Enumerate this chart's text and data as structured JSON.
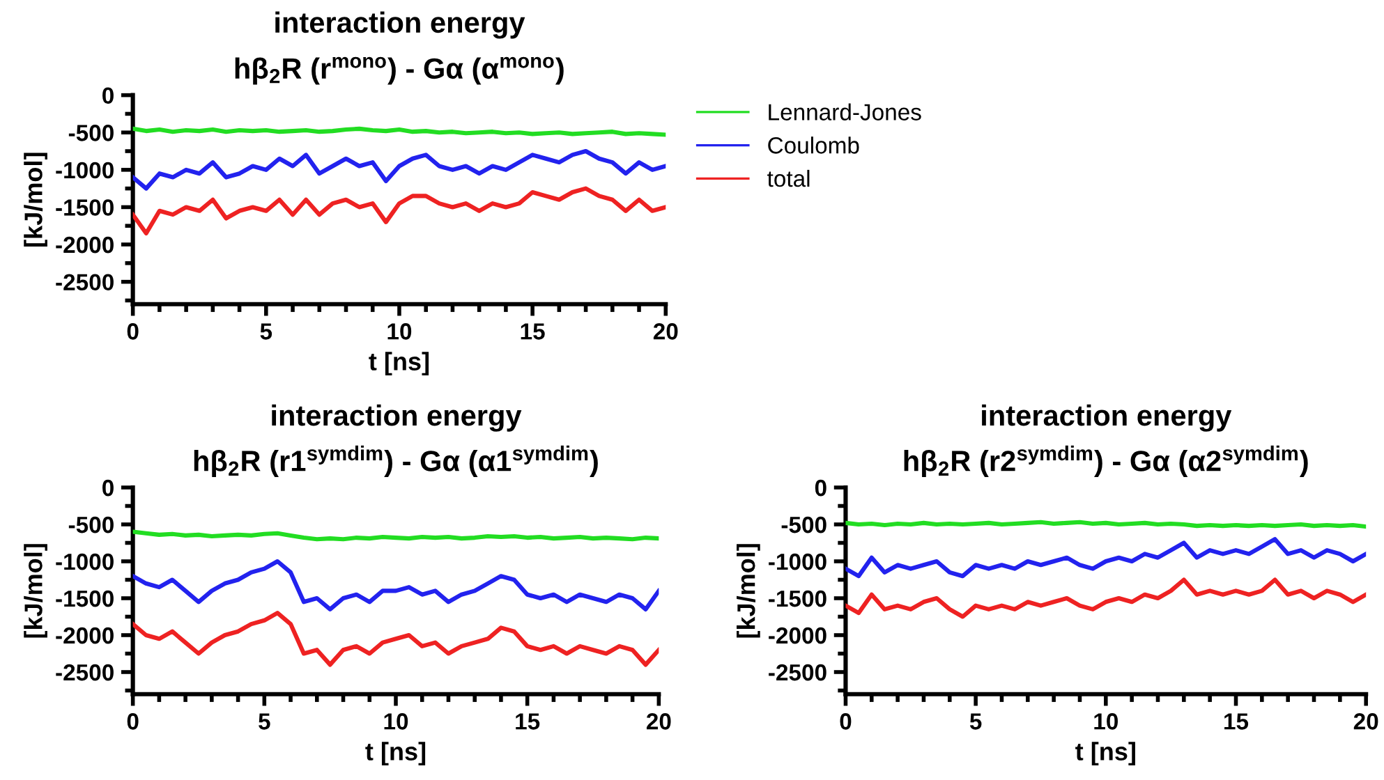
{
  "chart_data": [
    {
      "type": "line",
      "title": "interaction energy",
      "subtitle": "hβ$_{2}$R (r$^{mono}$) - Gα (α$^{mono}$)",
      "xlabel": "t [ns]",
      "ylabel": "[kJ/mol]",
      "x": [
        0,
        0.5,
        1,
        1.5,
        2,
        2.5,
        3,
        3.5,
        4,
        4.5,
        5,
        5.5,
        6,
        6.5,
        7,
        7.5,
        8,
        8.5,
        9,
        9.5,
        10,
        10.5,
        11,
        11.5,
        12,
        12.5,
        13,
        13.5,
        14,
        14.5,
        15,
        15.5,
        16,
        16.5,
        17,
        17.5,
        18,
        18.5,
        19,
        19.5,
        20
      ],
      "xlim": [
        0,
        20
      ],
      "ylim": [
        -2800,
        0
      ],
      "xticks": [
        0,
        {
          "value": 1,
          "label": null
        },
        {
          "value": 2,
          "label": null
        },
        {
          "value": 3,
          "label": null
        },
        {
          "value": 4,
          "label": null
        },
        5,
        {
          "value": 6,
          "label": null
        },
        {
          "value": 7,
          "label": null
        },
        {
          "value": 8,
          "label": null
        },
        {
          "value": 9,
          "label": null
        },
        10,
        {
          "value": 11,
          "label": null
        },
        {
          "value": 12,
          "label": null
        },
        {
          "value": 13,
          "label": null
        },
        {
          "value": 14,
          "label": null
        },
        15,
        {
          "value": 16,
          "label": null
        },
        {
          "value": 17,
          "label": null
        },
        {
          "value": 18,
          "label": null
        },
        {
          "value": 19,
          "label": null
        },
        20
      ],
      "yticks": [
        0,
        {
          "value": -250,
          "label": null
        },
        -500,
        {
          "value": -750,
          "label": null
        },
        -1000,
        {
          "value": -1250,
          "label": null
        },
        -1500,
        {
          "value": -1750,
          "label": null
        },
        -2000,
        {
          "value": -2250,
          "label": null
        },
        -2500,
        {
          "value": -2750,
          "label": null
        }
      ],
      "grid": false,
      "legend": "right",
      "marker": "none",
      "line_style": "solid",
      "series": [
        {
          "name": "Lennard-Jones",
          "color": "#22dd22",
          "values": [
            -450,
            -480,
            -460,
            -490,
            -470,
            -480,
            -460,
            -490,
            -470,
            -480,
            -470,
            -490,
            -480,
            -470,
            -490,
            -480,
            -460,
            -450,
            -470,
            -480,
            -460,
            -490,
            -480,
            -500,
            -490,
            -510,
            -500,
            -490,
            -510,
            -500,
            -520,
            -510,
            -500,
            -520,
            -510,
            -500,
            -490,
            -520,
            -510,
            -520,
            -530
          ]
        },
        {
          "name": "Coulomb",
          "color": "#2222ee",
          "values": [
            -1100,
            -1250,
            -1050,
            -1100,
            -1000,
            -1050,
            -900,
            -1100,
            -1050,
            -950,
            -1000,
            -850,
            -950,
            -800,
            -1050,
            -950,
            -850,
            -950,
            -900,
            -1150,
            -950,
            -850,
            -800,
            -950,
            -1000,
            -950,
            -1050,
            -950,
            -1000,
            -900,
            -800,
            -850,
            -900,
            -800,
            -750,
            -850,
            -900,
            -1050,
            -900,
            -1000,
            -950
          ]
        },
        {
          "name": "total",
          "color": "#ee2222",
          "values": [
            -1600,
            -1850,
            -1550,
            -1600,
            -1500,
            -1550,
            -1400,
            -1650,
            -1550,
            -1500,
            -1550,
            -1400,
            -1600,
            -1400,
            -1600,
            -1450,
            -1400,
            -1500,
            -1450,
            -1700,
            -1450,
            -1350,
            -1350,
            -1450,
            -1500,
            -1450,
            -1550,
            -1450,
            -1500,
            -1450,
            -1300,
            -1350,
            -1400,
            -1300,
            -1250,
            -1350,
            -1400,
            -1550,
            -1400,
            -1550,
            -1500
          ]
        }
      ]
    },
    {
      "type": "line",
      "title": "interaction energy",
      "subtitle": "hβ$_{2}$R (r1$^{symdim}$) - Gα (α1$^{symdim}$)",
      "xlabel": "t [ns]",
      "ylabel": "[kJ/mol]",
      "x": [
        0,
        0.5,
        1,
        1.5,
        2,
        2.5,
        3,
        3.5,
        4,
        4.5,
        5,
        5.5,
        6,
        6.5,
        7,
        7.5,
        8,
        8.5,
        9,
        9.5,
        10,
        10.5,
        11,
        11.5,
        12,
        12.5,
        13,
        13.5,
        14,
        14.5,
        15,
        15.5,
        16,
        16.5,
        17,
        17.5,
        18,
        18.5,
        19,
        19.5,
        20
      ],
      "xlim": [
        0,
        20
      ],
      "ylim": [
        -2800,
        0
      ],
      "xticks": [
        0,
        {
          "value": 1,
          "label": null
        },
        {
          "value": 2,
          "label": null
        },
        {
          "value": 3,
          "label": null
        },
        {
          "value": 4,
          "label": null
        },
        5,
        {
          "value": 6,
          "label": null
        },
        {
          "value": 7,
          "label": null
        },
        {
          "value": 8,
          "label": null
        },
        {
          "value": 9,
          "label": null
        },
        10,
        {
          "value": 11,
          "label": null
        },
        {
          "value": 12,
          "label": null
        },
        {
          "value": 13,
          "label": null
        },
        {
          "value": 14,
          "label": null
        },
        15,
        {
          "value": 16,
          "label": null
        },
        {
          "value": 17,
          "label": null
        },
        {
          "value": 18,
          "label": null
        },
        {
          "value": 19,
          "label": null
        },
        20
      ],
      "yticks": [
        0,
        {
          "value": -250,
          "label": null
        },
        -500,
        {
          "value": -750,
          "label": null
        },
        -1000,
        {
          "value": -1250,
          "label": null
        },
        -1500,
        {
          "value": -1750,
          "label": null
        },
        -2000,
        {
          "value": -2250,
          "label": null
        },
        -2500,
        {
          "value": -2750,
          "label": null
        }
      ],
      "grid": false,
      "marker": "none",
      "line_style": "solid",
      "series": [
        {
          "color": "#22dd22",
          "values": [
            -600,
            -620,
            -640,
            -630,
            -650,
            -640,
            -660,
            -650,
            -640,
            -650,
            -630,
            -620,
            -650,
            -680,
            -700,
            -690,
            -700,
            -680,
            -690,
            -670,
            -680,
            -690,
            -670,
            -680,
            -670,
            -690,
            -680,
            -660,
            -670,
            -660,
            -680,
            -670,
            -690,
            -680,
            -670,
            -690,
            -680,
            -690,
            -700,
            -680,
            -690
          ]
        },
        {
          "color": "#2222ee",
          "values": [
            -1200,
            -1300,
            -1350,
            -1250,
            -1400,
            -1550,
            -1400,
            -1300,
            -1250,
            -1150,
            -1100,
            -1000,
            -1150,
            -1550,
            -1500,
            -1650,
            -1500,
            -1450,
            -1550,
            -1400,
            -1400,
            -1350,
            -1450,
            -1400,
            -1550,
            -1450,
            -1400,
            -1300,
            -1200,
            -1250,
            -1450,
            -1500,
            -1450,
            -1550,
            -1450,
            -1500,
            -1550,
            -1450,
            -1500,
            -1650,
            -1400
          ]
        },
        {
          "color": "#ee2222",
          "values": [
            -1850,
            -2000,
            -2050,
            -1950,
            -2100,
            -2250,
            -2100,
            -2000,
            -1950,
            -1850,
            -1800,
            -1700,
            -1850,
            -2250,
            -2200,
            -2400,
            -2200,
            -2150,
            -2250,
            -2100,
            -2050,
            -2000,
            -2150,
            -2100,
            -2250,
            -2150,
            -2100,
            -2050,
            -1900,
            -1950,
            -2150,
            -2200,
            -2150,
            -2250,
            -2150,
            -2200,
            -2250,
            -2150,
            -2200,
            -2400,
            -2200
          ]
        }
      ]
    },
    {
      "type": "line",
      "title": "interaction energy",
      "subtitle": "hβ$_{2}$R (r2$^{symdim}$) - Gα (α2$^{symdim}$)",
      "xlabel": "t [ns]",
      "ylabel": "[kJ/mol]",
      "x": [
        0,
        0.5,
        1,
        1.5,
        2,
        2.5,
        3,
        3.5,
        4,
        4.5,
        5,
        5.5,
        6,
        6.5,
        7,
        7.5,
        8,
        8.5,
        9,
        9.5,
        10,
        10.5,
        11,
        11.5,
        12,
        12.5,
        13,
        13.5,
        14,
        14.5,
        15,
        15.5,
        16,
        16.5,
        17,
        17.5,
        18,
        18.5,
        19,
        19.5,
        20
      ],
      "xlim": [
        0,
        20
      ],
      "ylim": [
        -2800,
        0
      ],
      "xticks": [
        0,
        {
          "value": 1,
          "label": null
        },
        {
          "value": 2,
          "label": null
        },
        {
          "value": 3,
          "label": null
        },
        {
          "value": 4,
          "label": null
        },
        5,
        {
          "value": 6,
          "label": null
        },
        {
          "value": 7,
          "label": null
        },
        {
          "value": 8,
          "label": null
        },
        {
          "value": 9,
          "label": null
        },
        10,
        {
          "value": 11,
          "label": null
        },
        {
          "value": 12,
          "label": null
        },
        {
          "value": 13,
          "label": null
        },
        {
          "value": 14,
          "label": null
        },
        15,
        {
          "value": 16,
          "label": null
        },
        {
          "value": 17,
          "label": null
        },
        {
          "value": 18,
          "label": null
        },
        {
          "value": 19,
          "label": null
        },
        20
      ],
      "yticks": [
        0,
        {
          "value": -250,
          "label": null
        },
        -500,
        {
          "value": -750,
          "label": null
        },
        -1000,
        {
          "value": -1250,
          "label": null
        },
        -1500,
        {
          "value": -1750,
          "label": null
        },
        -2000,
        {
          "value": -2250,
          "label": null
        },
        -2500,
        {
          "value": -2750,
          "label": null
        }
      ],
      "grid": false,
      "marker": "none",
      "line_style": "solid",
      "series": [
        {
          "color": "#22dd22",
          "values": [
            -480,
            -500,
            -490,
            -510,
            -490,
            -500,
            -480,
            -500,
            -490,
            -500,
            -490,
            -480,
            -500,
            -490,
            -480,
            -470,
            -490,
            -480,
            -470,
            -490,
            -480,
            -500,
            -490,
            -480,
            -500,
            -490,
            -500,
            -520,
            -510,
            -520,
            -510,
            -520,
            -510,
            -520,
            -510,
            -500,
            -520,
            -510,
            -520,
            -510,
            -530
          ]
        },
        {
          "color": "#2222ee",
          "values": [
            -1100,
            -1200,
            -950,
            -1150,
            -1050,
            -1100,
            -1050,
            -1000,
            -1150,
            -1200,
            -1050,
            -1100,
            -1050,
            -1100,
            -1000,
            -1050,
            -1000,
            -950,
            -1050,
            -1100,
            -1000,
            -950,
            -1000,
            -900,
            -950,
            -850,
            -750,
            -950,
            -850,
            -900,
            -850,
            -900,
            -800,
            -700,
            -900,
            -850,
            -950,
            -850,
            -900,
            -1000,
            -900
          ]
        },
        {
          "color": "#ee2222",
          "values": [
            -1600,
            -1700,
            -1450,
            -1650,
            -1600,
            -1650,
            -1550,
            -1500,
            -1650,
            -1750,
            -1600,
            -1650,
            -1600,
            -1650,
            -1550,
            -1600,
            -1550,
            -1500,
            -1600,
            -1650,
            -1550,
            -1500,
            -1550,
            -1450,
            -1500,
            -1400,
            -1250,
            -1450,
            -1400,
            -1450,
            -1400,
            -1450,
            -1400,
            -1250,
            -1450,
            -1400,
            -1500,
            -1400,
            -1450,
            -1550,
            -1450
          ]
        }
      ]
    }
  ]
}
